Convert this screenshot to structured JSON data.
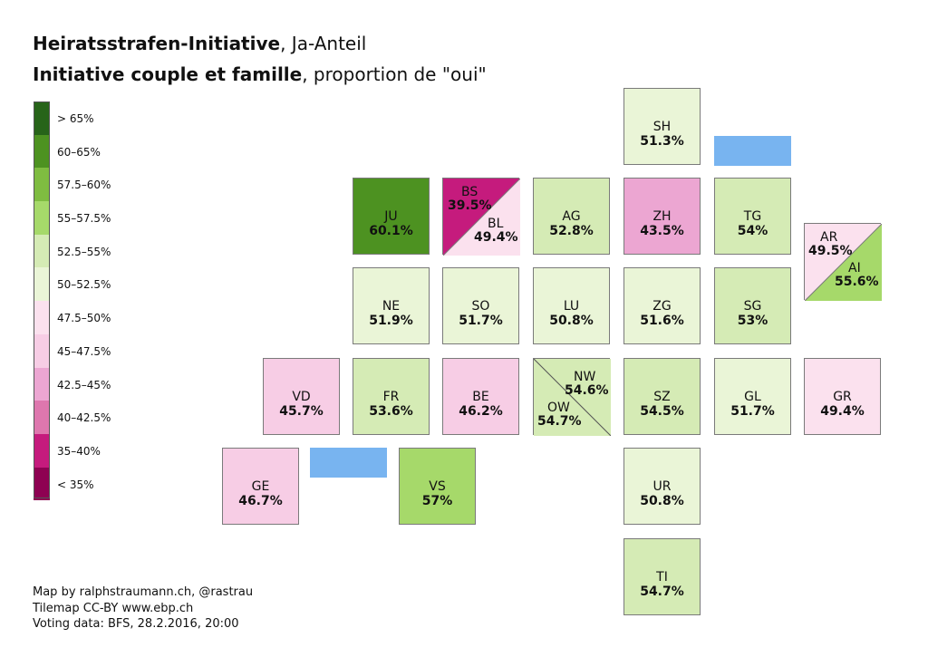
{
  "title": {
    "line1_bold": "Heiratsstrafen-Initiative",
    "line1_rest": ", Ja-Anteil",
    "line2_bold": "Initiative couple et famille",
    "line2_rest": ", proportion de \"oui\""
  },
  "legend": [
    {
      "label": "> 65%",
      "color": "#276419"
    },
    {
      "label": "60–65%",
      "color": "#4d9221"
    },
    {
      "label": "57.5–60%",
      "color": "#7fbc41"
    },
    {
      "label": "55–57.5%",
      "color": "#a6d96a"
    },
    {
      "label": "52.5–55%",
      "color": "#d5ebb5"
    },
    {
      "label": "50–52.5%",
      "color": "#eaf5d7"
    },
    {
      "label": "47.5–50%",
      "color": "#fbe1ee"
    },
    {
      "label": "45–47.5%",
      "color": "#f7cde5"
    },
    {
      "label": "42.5–45%",
      "color": "#eca6d2"
    },
    {
      "label": "40–42.5%",
      "color": "#de77ae"
    },
    {
      "label": "35–40%",
      "color": "#c51b7d"
    },
    {
      "label": "< 35%",
      "color": "#8e0152"
    }
  ],
  "cantons": {
    "SH": {
      "abbr": "SH",
      "value": "51.3%"
    },
    "JU": {
      "abbr": "JU",
      "value": "60.1%"
    },
    "AG": {
      "abbr": "AG",
      "value": "52.8%"
    },
    "ZH": {
      "abbr": "ZH",
      "value": "43.5%"
    },
    "TG": {
      "abbr": "TG",
      "value": "54%"
    },
    "NE": {
      "abbr": "NE",
      "value": "51.9%"
    },
    "SO": {
      "abbr": "SO",
      "value": "51.7%"
    },
    "LU": {
      "abbr": "LU",
      "value": "50.8%"
    },
    "ZG": {
      "abbr": "ZG",
      "value": "51.6%"
    },
    "SG": {
      "abbr": "SG",
      "value": "53%"
    },
    "VD": {
      "abbr": "VD",
      "value": "45.7%"
    },
    "FR": {
      "abbr": "FR",
      "value": "53.6%"
    },
    "BE": {
      "abbr": "BE",
      "value": "46.2%"
    },
    "SZ": {
      "abbr": "SZ",
      "value": "54.5%"
    },
    "GL": {
      "abbr": "GL",
      "value": "51.7%"
    },
    "GR": {
      "abbr": "GR",
      "value": "49.4%"
    },
    "GE": {
      "abbr": "GE",
      "value": "46.7%"
    },
    "VS": {
      "abbr": "VS",
      "value": "57%"
    },
    "UR": {
      "abbr": "UR",
      "value": "50.8%"
    },
    "TI": {
      "abbr": "TI",
      "value": "54.7%"
    },
    "BS": {
      "abbr": "BS",
      "value": "39.5%"
    },
    "BL": {
      "abbr": "BL",
      "value": "49.4%"
    },
    "AR": {
      "abbr": "AR",
      "value": "49.5%"
    },
    "AI": {
      "abbr": "AI",
      "value": "55.6%"
    },
    "NW": {
      "abbr": "NW",
      "value": "54.6%"
    },
    "OW": {
      "abbr": "OW",
      "value": "54.7%"
    }
  },
  "colors": {
    "water": "#78b4f0",
    "dark_green": "#4d9221",
    "mid_green": "#a6d96a",
    "light_green": "#d5ebb5",
    "pale_green": "#eaf5d7",
    "pale_pink": "#fbe1ee",
    "light_pink": "#f7cde5",
    "mid_pink": "#eca6d2",
    "magenta": "#c51b7d"
  },
  "credits": {
    "line1": "Map by ralphstraumann.ch, @rastrau",
    "line2": "Tilemap CC-BY www.ebp.ch",
    "line3": "Voting data: BFS, 28.2.2016, 20:00"
  }
}
